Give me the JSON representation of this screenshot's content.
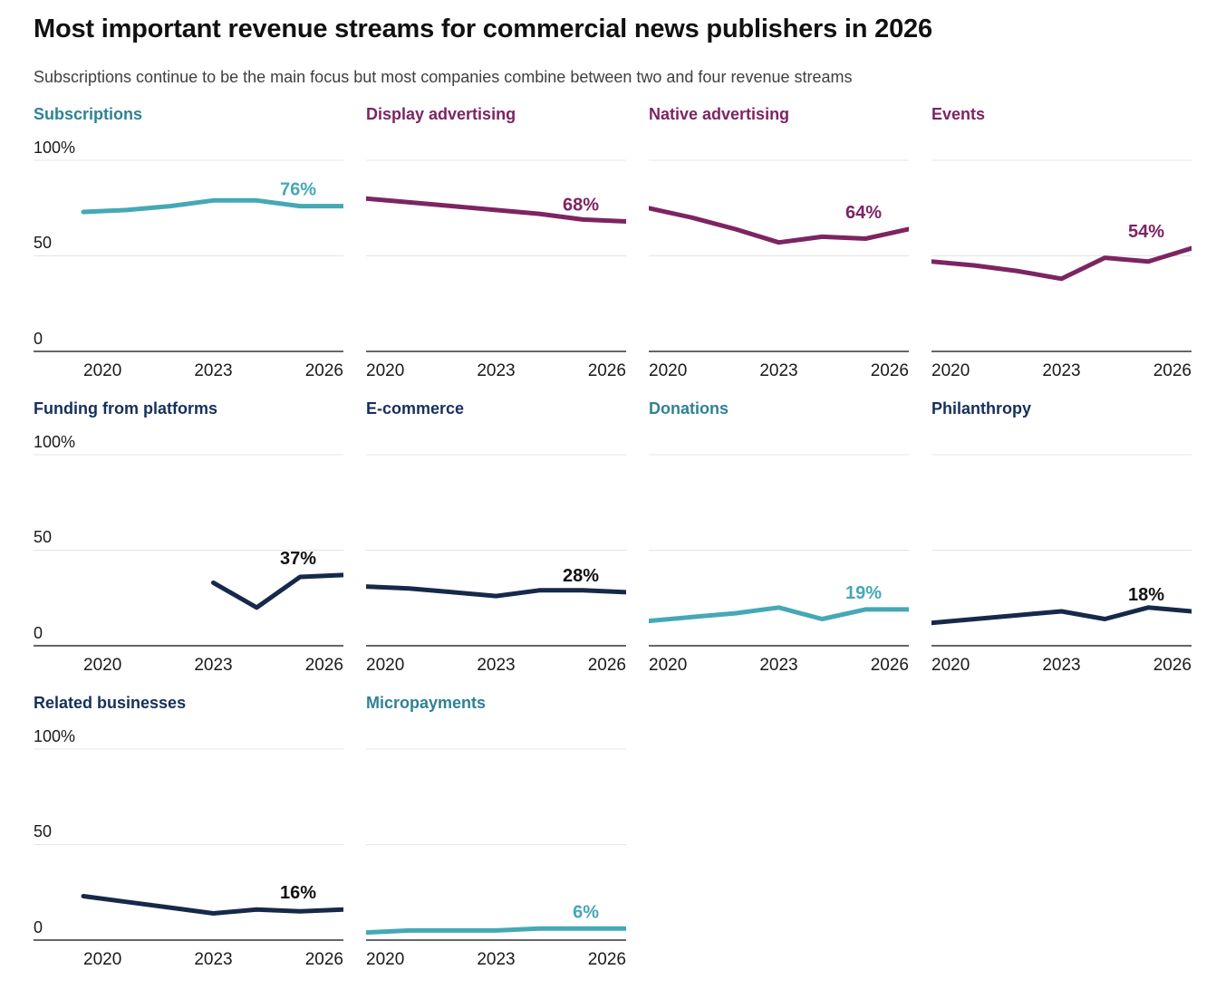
{
  "header": {
    "title": "Most important revenue streams for commercial news publishers in 2026",
    "subtitle": "Subscriptions continue to be the main focus but most companies combine between two and four revenue streams"
  },
  "axis": {
    "x_ticks": [
      "2020",
      "2023",
      "2026"
    ],
    "y_ticks": [
      "100%",
      "50",
      "0"
    ],
    "x_range": [
      2020,
      2026
    ],
    "y_range": [
      0,
      100
    ],
    "grid": "horizontal-only",
    "legend": "none"
  },
  "palette": {
    "teal_line": "#45a8b6",
    "teal_title": "#2f8294",
    "purple_line": "#7d2463",
    "purple_title": "#7d2463",
    "navy_line": "#16294a",
    "navy_title": "#16305c",
    "dark_label": "#111111",
    "gridline": "#e4e4e4",
    "baseline": "#333333",
    "text": "#1a1a1a"
  },
  "chart_data": [
    {
      "type": "line",
      "title": "Subscriptions",
      "end_label": "76%",
      "color": "teal",
      "x": [
        2020,
        2021,
        2022,
        2023,
        2024,
        2025,
        2026
      ],
      "values": [
        73,
        74,
        76,
        79,
        79,
        76,
        76
      ]
    },
    {
      "type": "line",
      "title": "Display advertising",
      "end_label": "68%",
      "color": "purple",
      "x": [
        2020,
        2021,
        2022,
        2023,
        2024,
        2025,
        2026
      ],
      "values": [
        80,
        78,
        76,
        74,
        72,
        69,
        68
      ]
    },
    {
      "type": "line",
      "title": "Native advertising",
      "end_label": "64%",
      "color": "purple",
      "x": [
        2020,
        2021,
        2022,
        2023,
        2024,
        2025,
        2026
      ],
      "values": [
        75,
        70,
        64,
        57,
        60,
        59,
        64
      ]
    },
    {
      "type": "line",
      "title": "Events",
      "end_label": "54%",
      "color": "purple",
      "x": [
        2020,
        2021,
        2022,
        2023,
        2024,
        2025,
        2026
      ],
      "values": [
        47,
        45,
        42,
        38,
        49,
        47,
        54
      ]
    },
    {
      "type": "line",
      "title": "Funding from platforms",
      "end_label": "37%",
      "color": "navy",
      "x": [
        2020,
        2021,
        2022,
        2023,
        2024,
        2025,
        2026
      ],
      "values": [
        null,
        null,
        null,
        33,
        20,
        36,
        37
      ]
    },
    {
      "type": "line",
      "title": "E-commerce",
      "end_label": "28%",
      "color": "navy",
      "x": [
        2020,
        2021,
        2022,
        2023,
        2024,
        2025,
        2026
      ],
      "values": [
        31,
        30,
        28,
        26,
        29,
        29,
        28
      ]
    },
    {
      "type": "line",
      "title": "Donations",
      "end_label": "19%",
      "color": "teal",
      "x": [
        2020,
        2021,
        2022,
        2023,
        2024,
        2025,
        2026
      ],
      "values": [
        13,
        15,
        17,
        20,
        14,
        19,
        19
      ]
    },
    {
      "type": "line",
      "title": "Philanthropy",
      "end_label": "18%",
      "color": "navy",
      "x": [
        2020,
        2021,
        2022,
        2023,
        2024,
        2025,
        2026
      ],
      "values": [
        12,
        14,
        16,
        18,
        14,
        20,
        18
      ]
    },
    {
      "type": "line",
      "title": "Related businesses",
      "end_label": "16%",
      "color": "navy",
      "x": [
        2020,
        2021,
        2022,
        2023,
        2024,
        2025,
        2026
      ],
      "values": [
        23,
        20,
        17,
        14,
        16,
        15,
        16
      ]
    },
    {
      "type": "line",
      "title": "Micropayments",
      "end_label": "6%",
      "color": "teal",
      "x": [
        2020,
        2021,
        2022,
        2023,
        2024,
        2025,
        2026
      ],
      "values": [
        4,
        5,
        5,
        5,
        6,
        6,
        6
      ]
    }
  ]
}
